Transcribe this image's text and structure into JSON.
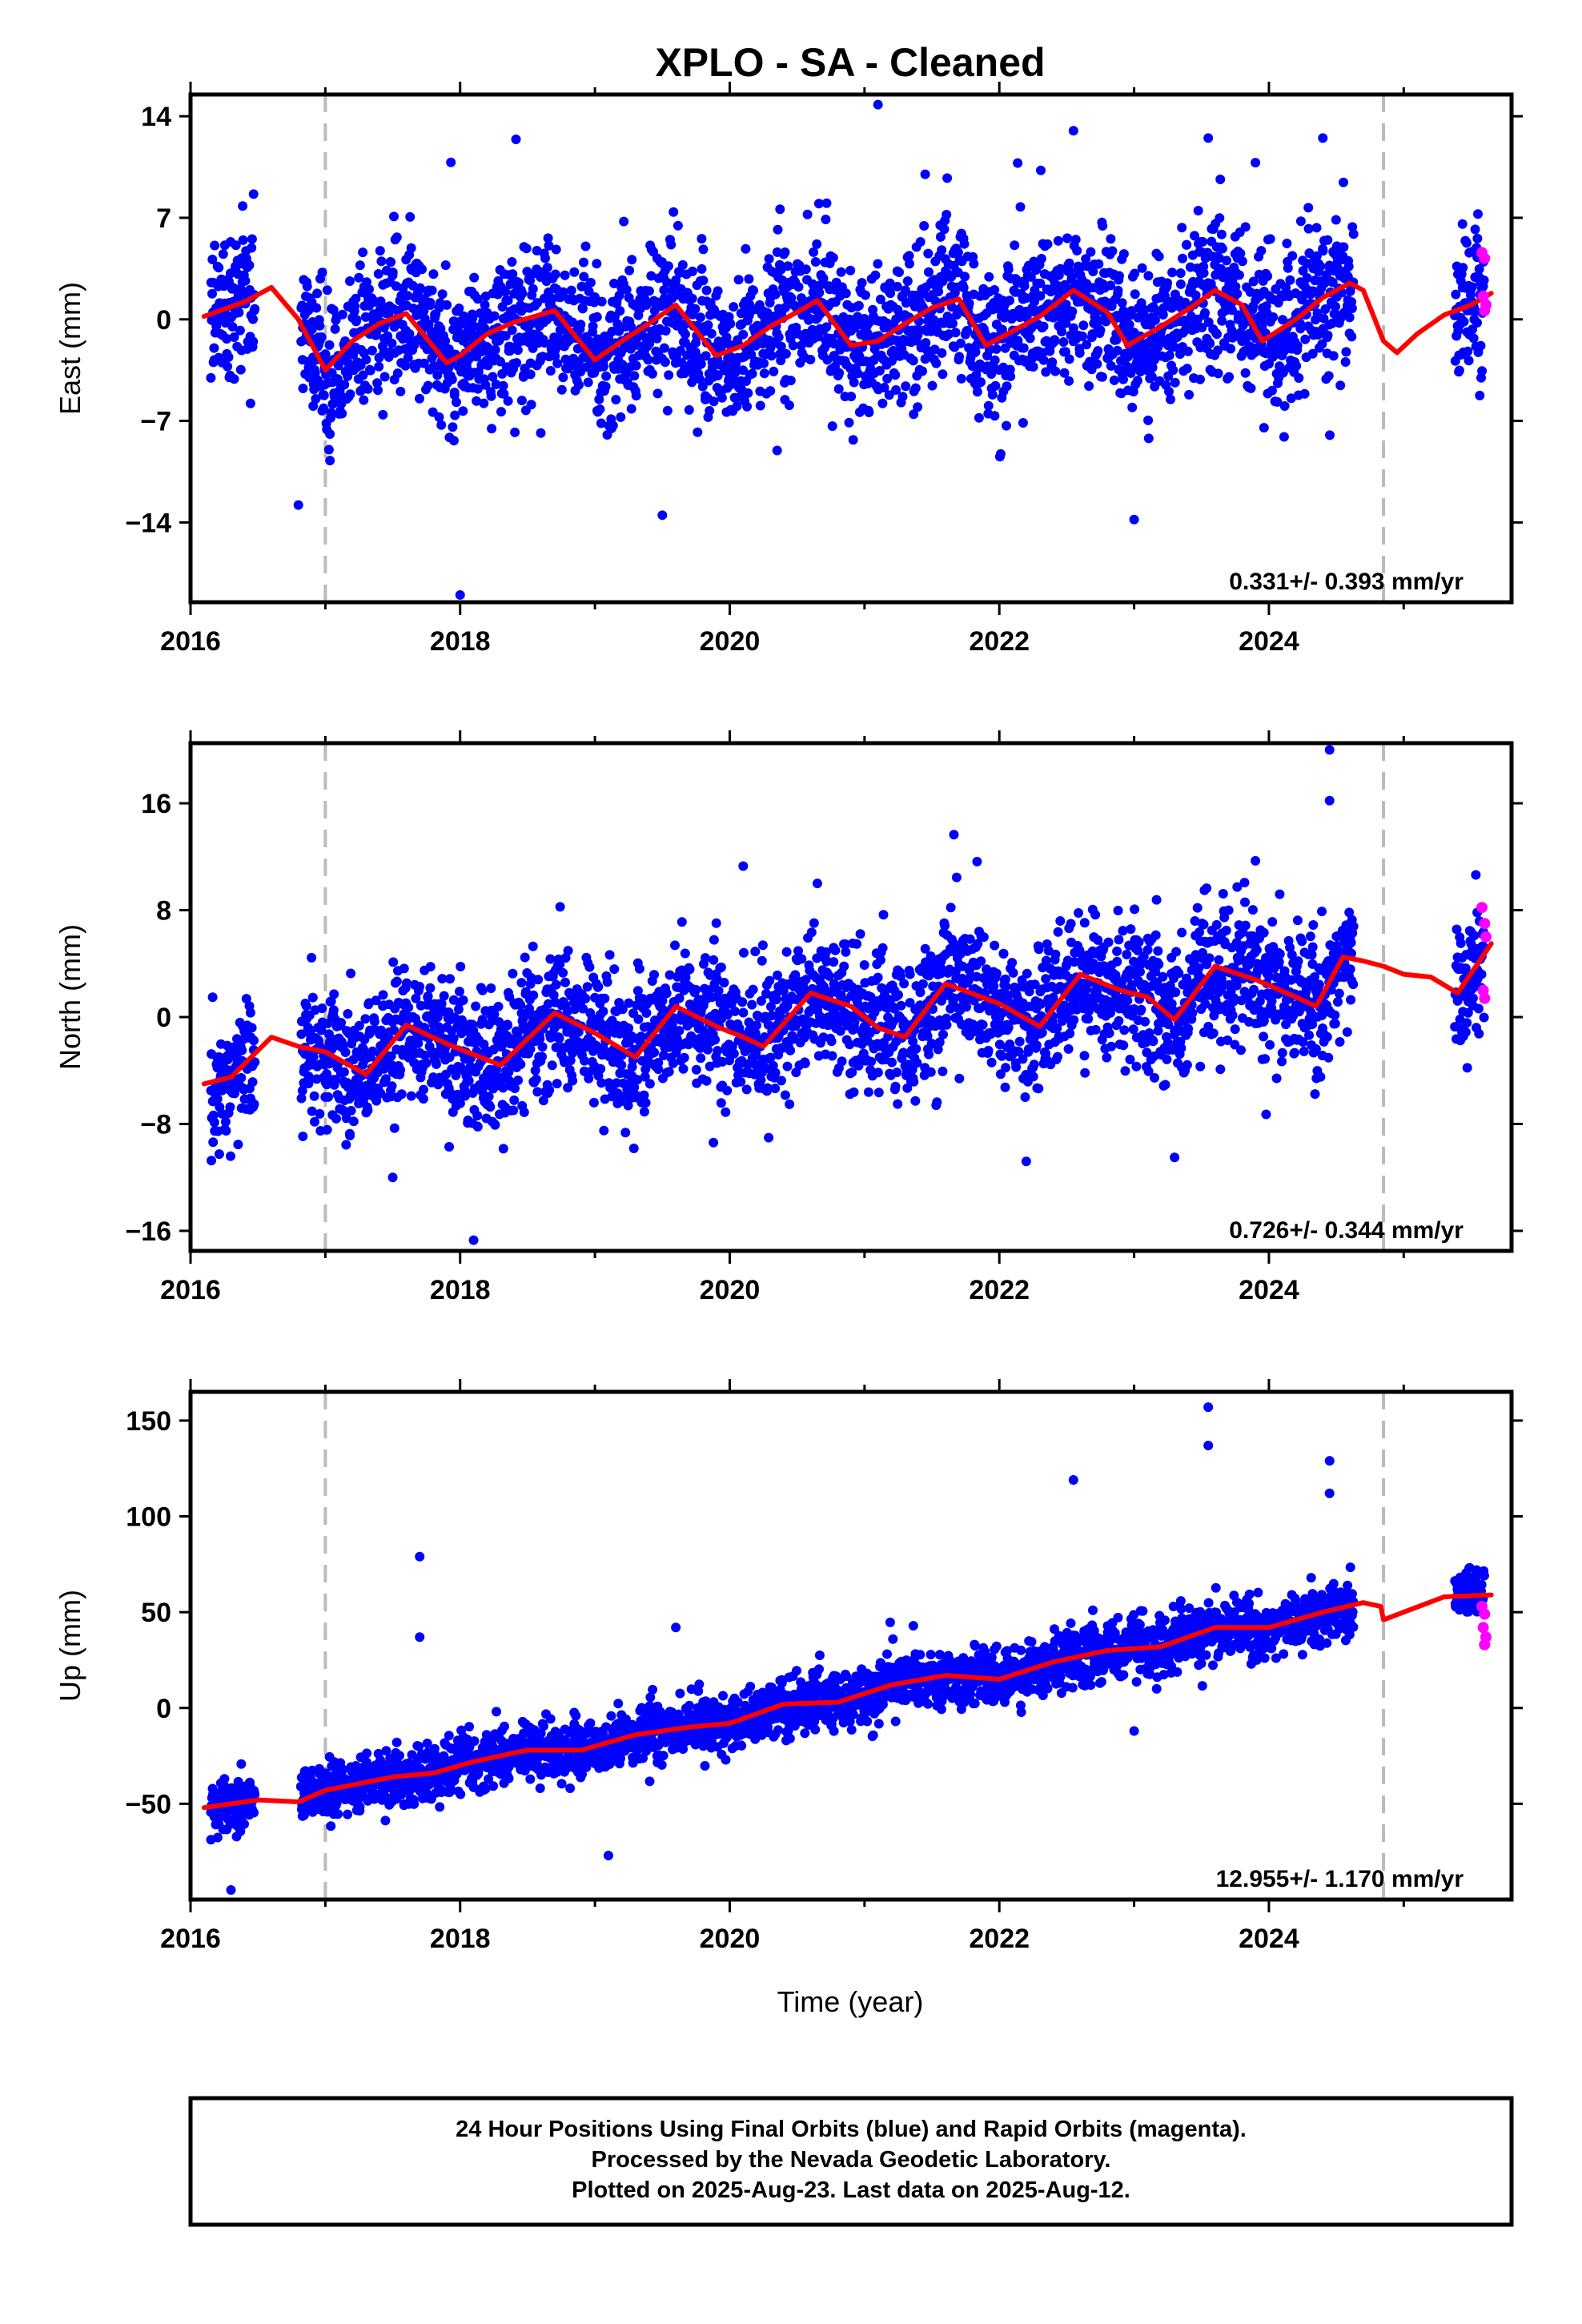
{
  "chart_data": {
    "title": "XPLO  - SA - Cleaned",
    "type": "scatter",
    "xlabel": "Time (year)",
    "xlim": [
      2016,
      2025.8
    ],
    "xticks": [
      2016,
      2018,
      2020,
      2022,
      2024
    ],
    "events": [
      2017.0,
      2024.85
    ],
    "colors": {
      "final": "#0000ff",
      "rapid": "#ff00ff",
      "model": "#ff0000",
      "event": "#bbbbbb"
    },
    "panels": [
      {
        "name": "East",
        "ylabel": "East (mm)",
        "ylim": [
          -19.5,
          15.5
        ],
        "yticks": [
          14,
          7,
          0,
          -7,
          -14
        ],
        "ytick_labels": [
          "14",
          "7",
          "0",
          "−7",
          "−14"
        ],
        "rate_text": "0.331+/- 0.393 mm/yr",
        "model": {
          "x": [
            2016.1,
            2016.4,
            2016.6,
            2016.8,
            2017.0,
            2017.2,
            2017.4,
            2017.6,
            2017.9,
            2018.0,
            2018.2,
            2018.4,
            2018.7,
            2019.0,
            2019.2,
            2019.4,
            2019.6,
            2019.9,
            2020.1,
            2020.3,
            2020.5,
            2020.65,
            2020.9,
            2021.1,
            2021.3,
            2021.5,
            2021.7,
            2021.9,
            2022.1,
            2022.3,
            2022.55,
            2022.8,
            2022.95,
            2023.2,
            2023.45,
            2023.6,
            2023.8,
            2023.95,
            2024.2,
            2024.4,
            2024.6,
            2024.7,
            2024.85,
            2024.95,
            2025.1,
            2025.3,
            2025.5,
            2025.65
          ],
          "y": [
            0.2,
            1.2,
            2.2,
            0.0,
            -3.5,
            -1.5,
            -0.3,
            0.4,
            -3.0,
            -2.5,
            -1.0,
            -0.2,
            0.6,
            -2.8,
            -1.5,
            -0.3,
            1.0,
            -2.5,
            -1.8,
            -0.5,
            0.5,
            1.3,
            -1.8,
            -1.5,
            -0.3,
            0.8,
            1.4,
            -1.8,
            -0.8,
            0.2,
            2.0,
            0.5,
            -1.8,
            -0.5,
            1.0,
            2.0,
            1.0,
            -1.5,
            0.0,
            1.5,
            2.5,
            2.0,
            -1.5,
            -2.3,
            -1.0,
            0.3,
            1.0,
            1.8
          ]
        },
        "rapid_points": [
          [
            2025.58,
            4.6
          ],
          [
            2025.6,
            4.2
          ],
          [
            2025.59,
            1.6
          ],
          [
            2025.61,
            1.0
          ],
          [
            2025.6,
            0.6
          ]
        ],
        "notable_points": [
          [
            2021.1,
            14.8
          ],
          [
            2021.45,
            10.0
          ],
          [
            2022.55,
            13.0
          ],
          [
            2023.55,
            12.5
          ],
          [
            2023.9,
            10.8
          ],
          [
            2024.4,
            12.5
          ],
          [
            2018.0,
            -19.0
          ],
          [
            2016.8,
            -12.8
          ],
          [
            2019.5,
            -13.5
          ],
          [
            2023.0,
            -13.8
          ]
        ]
      },
      {
        "name": "North",
        "ylabel": "North (mm)",
        "ylim": [
          -17.5,
          20.5
        ],
        "yticks": [
          16,
          8,
          0,
          -8,
          -16
        ],
        "ytick_labels": [
          "16",
          "8",
          "0",
          "−8",
          "−16"
        ],
        "rate_text": "0.726+/- 0.344 mm/yr",
        "model": {
          "x": [
            2016.1,
            2016.3,
            2016.6,
            2016.8,
            2017.0,
            2017.3,
            2017.6,
            2017.9,
            2018.3,
            2018.7,
            2019.0,
            2019.3,
            2019.6,
            2019.9,
            2020.1,
            2020.25,
            2020.6,
            2020.9,
            2021.1,
            2021.3,
            2021.6,
            2022.0,
            2022.3,
            2022.6,
            2022.9,
            2023.1,
            2023.3,
            2023.6,
            2023.9,
            2024.2,
            2024.35,
            2024.55,
            2024.7,
            2024.85,
            2025.0,
            2025.2,
            2025.4,
            2025.65
          ],
          "y": [
            -5.0,
            -4.5,
            -1.5,
            -2.2,
            -2.6,
            -4.3,
            -0.6,
            -2.0,
            -3.6,
            0.3,
            -1.2,
            -3.0,
            0.8,
            -0.7,
            -1.5,
            -2.2,
            1.8,
            0.8,
            -0.8,
            -1.5,
            2.5,
            1.0,
            -0.7,
            3.2,
            2.0,
            1.5,
            -0.2,
            3.8,
            2.8,
            1.5,
            0.8,
            4.5,
            4.2,
            3.8,
            3.2,
            3.0,
            1.8,
            5.5
          ]
        },
        "rapid_points": [
          [
            2025.58,
            8.2
          ],
          [
            2025.6,
            7.0
          ],
          [
            2025.61,
            6.0
          ],
          [
            2025.59,
            2.0
          ],
          [
            2025.6,
            1.4
          ]
        ],
        "notable_points": [
          [
            2024.45,
            20.0
          ],
          [
            2024.45,
            16.2
          ],
          [
            2023.9,
            11.7
          ],
          [
            2020.1,
            11.3
          ],
          [
            2020.65,
            10.0
          ],
          [
            2018.1,
            -16.7
          ],
          [
            2017.5,
            -12.0
          ],
          [
            2023.3,
            -10.5
          ],
          [
            2022.2,
            -10.8
          ]
        ]
      },
      {
        "name": "Up",
        "ylabel": "Up (mm)",
        "ylim": [
          -100,
          165
        ],
        "yticks": [
          150,
          100,
          50,
          0,
          -50
        ],
        "ytick_labels": [
          "150",
          "100",
          "50",
          "0",
          "−50"
        ],
        "rate_text": "12.955+/- 1.170 mm/yr",
        "model": {
          "x": [
            2016.1,
            2016.5,
            2016.8,
            2017.0,
            2017.5,
            2017.8,
            2018.1,
            2018.5,
            2018.9,
            2019.3,
            2019.7,
            2020.0,
            2020.4,
            2020.8,
            2021.2,
            2021.6,
            2022.0,
            2022.4,
            2022.8,
            2023.2,
            2023.6,
            2024.0,
            2024.4,
            2024.7,
            2024.83,
            2024.85,
            2025.0,
            2025.3,
            2025.65
          ],
          "y": [
            -52,
            -48,
            -49,
            -43,
            -36,
            -34,
            -28,
            -22,
            -22,
            -14,
            -10,
            -8,
            2,
            3,
            12,
            17,
            15,
            24,
            30,
            32,
            42,
            42,
            50,
            55,
            53,
            46,
            50,
            58,
            59
          ]
        },
        "rapid_points": [
          [
            2025.58,
            53
          ],
          [
            2025.6,
            49
          ],
          [
            2025.59,
            42
          ],
          [
            2025.61,
            37
          ],
          [
            2025.6,
            33
          ]
        ],
        "notable_points": [
          [
            2023.55,
            157
          ],
          [
            2023.55,
            137
          ],
          [
            2024.45,
            129
          ],
          [
            2024.45,
            112
          ],
          [
            2022.55,
            119
          ],
          [
            2017.7,
            79
          ],
          [
            2017.7,
            37
          ],
          [
            2019.6,
            42
          ],
          [
            2016.3,
            -95
          ],
          [
            2019.1,
            -77
          ],
          [
            2023.0,
            -12
          ]
        ]
      }
    ],
    "footer_lines": [
      "24 Hour Positions Using Final Orbits (blue) and Rapid Orbits (magenta).",
      "Processed by the Nevada Geodetic Laboratory.",
      "Plotted on 2025-Aug-23. Last data on 2025-Aug-12."
    ]
  }
}
